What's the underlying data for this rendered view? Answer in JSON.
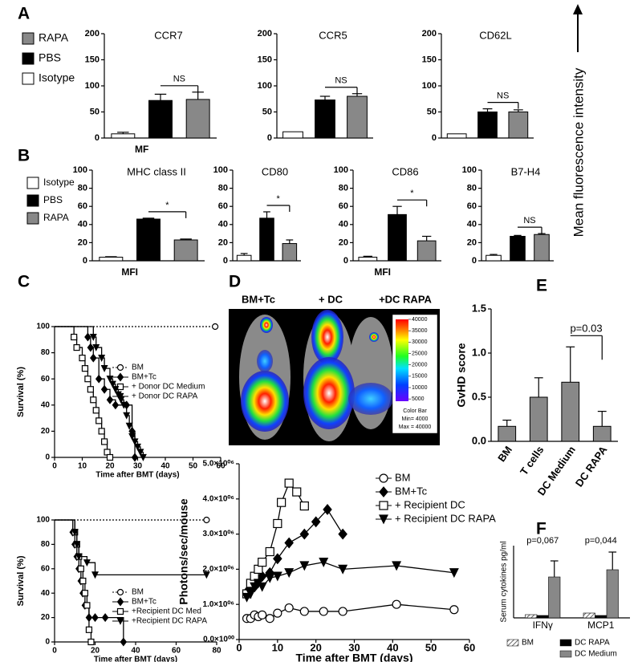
{
  "panel_labels": [
    "A",
    "B",
    "C",
    "D",
    "E",
    "F"
  ],
  "side_label": "Mean fluorescence intensity",
  "legends": [
    {
      "entries": [
        {
          "name": "RAPA",
          "color": "#888888"
        },
        {
          "name": "PBS",
          "color": "#000000"
        },
        {
          "name": "Isotype",
          "color": "#ffffff"
        }
      ]
    },
    {
      "entries": [
        {
          "name": "Isotype",
          "color": "#ffffff"
        },
        {
          "name": "PBS",
          "color": "#000000"
        },
        {
          "name": "RAPA",
          "color": "#888888"
        }
      ]
    }
  ],
  "chart_data": [
    {
      "type": "bar",
      "title": "CCR7",
      "xlabel": "MF",
      "values": [
        8,
        72,
        74
      ],
      "errors": [
        3,
        12,
        14
      ],
      "colors": [
        "#ffffff",
        "#000000",
        "#888888"
      ],
      "ylim": [
        0,
        200
      ],
      "yticks": [
        0,
        50,
        100,
        150,
        200
      ],
      "annotation": "NS"
    },
    {
      "type": "bar",
      "title": "CCR5",
      "values": [
        12,
        73,
        80
      ],
      "errors": [
        null,
        7,
        5
      ],
      "colors": [
        "#ffffff",
        "#000000",
        "#888888"
      ],
      "ylim": [
        0,
        200
      ],
      "yticks": [
        0,
        50,
        100,
        150,
        200
      ],
      "annotation": "NS"
    },
    {
      "type": "bar",
      "title": "CD62L",
      "values": [
        8,
        50,
        50
      ],
      "errors": [
        null,
        6,
        4
      ],
      "colors": [
        "#ffffff",
        "#000000",
        "#888888"
      ],
      "ylim": [
        0,
        200
      ],
      "yticks": [
        0,
        50,
        100,
        150,
        200
      ],
      "annotation": "NS"
    },
    {
      "type": "bar",
      "title": "MHC class II",
      "xlabel": "MFI",
      "values": [
        4,
        46,
        23
      ],
      "errors": [
        0.5,
        1,
        1
      ],
      "colors": [
        "#ffffff",
        "#000000",
        "#888888"
      ],
      "ylim": [
        0,
        100
      ],
      "yticks": [
        0,
        20,
        40,
        60,
        80,
        100
      ],
      "annotation": "*"
    },
    {
      "type": "bar",
      "title": "CD80",
      "values": [
        6,
        47,
        19
      ],
      "errors": [
        2,
        7,
        4
      ],
      "colors": [
        "#ffffff",
        "#000000",
        "#888888"
      ],
      "ylim": [
        0,
        100
      ],
      "yticks": [
        0,
        20,
        40,
        60,
        80,
        100
      ],
      "annotation": "*"
    },
    {
      "type": "bar",
      "title": "CD86",
      "xlabel": "MFI",
      "values": [
        4,
        51,
        22
      ],
      "errors": [
        1,
        9,
        5
      ],
      "colors": [
        "#ffffff",
        "#000000",
        "#888888"
      ],
      "ylim": [
        0,
        100
      ],
      "yticks": [
        0,
        20,
        40,
        60,
        80,
        100
      ],
      "annotation": "*"
    },
    {
      "type": "bar",
      "title": "B7-H4",
      "values": [
        6,
        27,
        29
      ],
      "errors": [
        1,
        1,
        1
      ],
      "colors": [
        "#ffffff",
        "#000000",
        "#888888"
      ],
      "ylim": [
        0,
        100
      ],
      "yticks": [
        0,
        20,
        40,
        60,
        80,
        100
      ],
      "annotation": "NS"
    },
    {
      "type": "survival",
      "ylabel": "Survival (%)",
      "xlabel": "Time after BMT (days)",
      "xlim": [
        0,
        60
      ],
      "xticks": [
        0,
        10,
        20,
        30,
        40,
        50,
        60
      ],
      "ylim": [
        0,
        100
      ],
      "yticks": [
        0,
        20,
        40,
        60,
        80,
        100
      ],
      "series": [
        {
          "name": "BM",
          "marker": "open-circle",
          "dash": true,
          "color": "#000000",
          "x": [
            0,
            58
          ],
          "values": [
            100,
            100
          ]
        },
        {
          "name": "BM+Tc",
          "marker": "filled-diamond",
          "color": "#000000",
          "x": [
            0,
            12,
            13,
            14,
            16,
            18,
            20,
            22,
            26,
            28,
            29
          ],
          "values": [
            100,
            92,
            84,
            76,
            60,
            52,
            44,
            40,
            40,
            20,
            0
          ]
        },
        {
          "name": "+ Donor DC Medium",
          "marker": "open-square",
          "color": "#000000",
          "x": [
            0,
            7,
            8,
            10,
            11,
            12,
            13,
            14,
            15,
            16,
            17,
            18,
            19,
            20
          ],
          "values": [
            100,
            92,
            84,
            76,
            68,
            60,
            52,
            44,
            36,
            28,
            20,
            12,
            4,
            0
          ]
        },
        {
          "name": "+ Donor DC RAPA",
          "marker": "filled-triangle-down",
          "color": "#000000",
          "x": [
            0,
            14,
            15,
            17,
            18,
            20,
            21,
            22,
            23,
            24,
            25,
            26,
            27,
            28,
            29,
            30,
            31,
            32
          ],
          "values": [
            100,
            92,
            84,
            76,
            68,
            60,
            56,
            52,
            48,
            44,
            40,
            32,
            24,
            16,
            12,
            8,
            4,
            0
          ]
        }
      ]
    },
    {
      "type": "survival",
      "ylabel": "Survival (%)",
      "xlabel": "Time after BMT (days)",
      "xlim": [
        0,
        80
      ],
      "xticks": [
        0,
        20,
        40,
        60,
        80
      ],
      "ylim": [
        0,
        100
      ],
      "yticks": [
        0,
        20,
        40,
        60,
        80,
        100
      ],
      "series": [
        {
          "name": "BM",
          "marker": "open-circle",
          "dash": true,
          "color": "#000000",
          "x": [
            0,
            75
          ],
          "values": [
            100,
            100
          ]
        },
        {
          "name": "BM+Tc",
          "marker": "filled-diamond",
          "color": "#000000",
          "x": [
            0,
            9,
            10,
            11,
            12,
            13,
            14,
            15,
            17,
            20,
            25,
            34
          ],
          "values": [
            100,
            90,
            80,
            70,
            60,
            50,
            40,
            30,
            20,
            20,
            20,
            0
          ]
        },
        {
          "name": "+Recipient DC Med",
          "marker": "open-square",
          "color": "#000000",
          "x": [
            0,
            10,
            11,
            12,
            13,
            14,
            15,
            16,
            17,
            18
          ],
          "values": [
            100,
            90,
            80,
            70,
            60,
            50,
            40,
            30,
            10,
            0
          ]
        },
        {
          "name": "+Recipient DC RAPA",
          "marker": "filled-triangle-down",
          "color": "#000000",
          "x": [
            0,
            10,
            11,
            12,
            16,
            20,
            75
          ],
          "values": [
            100,
            90,
            80,
            70,
            65,
            55,
            55
          ]
        }
      ]
    },
    {
      "type": "image",
      "labels": [
        "BM+Tc",
        "+ DC",
        "+DC RAPA"
      ],
      "colorbar": {
        "ticks": [
          40000,
          35000,
          30000,
          25000,
          20000,
          15000,
          10000,
          5000
        ],
        "lim": [
          4000,
          40000
        ],
        "title": "Color Bar",
        "min_label": "Min= 4000",
        "max_label": "Max = 40000"
      }
    },
    {
      "type": "line",
      "ylabel": "Photons/sec/mouse",
      "xlabel": "Time after BMT (days)",
      "xlim": [
        0,
        60
      ],
      "xticks": [
        0,
        10,
        20,
        30,
        40,
        50,
        60
      ],
      "ylim": [
        0,
        5000000
      ],
      "yticks": [
        {
          "value": 0,
          "label": "0.0×10⁰⁰"
        },
        {
          "value": 1000000,
          "label": "1.0×10⁰⁶"
        },
        {
          "value": 2000000,
          "label": "2.0×10⁰⁶"
        },
        {
          "value": 3000000,
          "label": "3.0×10⁰⁶"
        },
        {
          "value": 4000000,
          "label": "4.0×10⁰⁶"
        },
        {
          "value": 5000000,
          "label": "5.0×10⁰⁶"
        }
      ],
      "series": [
        {
          "name": "BM",
          "marker": "open-circle",
          "color": "#000000",
          "x": [
            2,
            3,
            4,
            5,
            6,
            8,
            10,
            13,
            17,
            22,
            27,
            41,
            56
          ],
          "values": [
            600000,
            600000,
            700000,
            650000,
            700000,
            600000,
            750000,
            900000,
            800000,
            800000,
            800000,
            1000000,
            850000
          ]
        },
        {
          "name": "BM+Tc",
          "marker": "filled-diamond",
          "color": "#000000",
          "x": [
            2,
            3,
            4,
            5,
            6,
            8,
            10,
            13,
            17,
            20,
            23,
            27
          ],
          "values": [
            1350000,
            1400000,
            1500000,
            1700000,
            1800000,
            1900000,
            2300000,
            2750000,
            3000000,
            3350000,
            3700000,
            3000000
          ]
        },
        {
          "name": "+ Recipient DC",
          "marker": "open-square",
          "color": "#000000",
          "x": [
            2,
            3,
            4,
            5,
            6,
            8,
            10,
            11,
            13,
            15,
            17
          ],
          "values": [
            1300000,
            1600000,
            1800000,
            2000000,
            2200000,
            2500000,
            3300000,
            3900000,
            4450000,
            4200000,
            3800000
          ]
        },
        {
          "name": "+ Recipient DC RAPA",
          "marker": "filled-triangle-down",
          "color": "#000000",
          "x": [
            2,
            3,
            4,
            5,
            6,
            8,
            10,
            13,
            17,
            22,
            27,
            41,
            56
          ],
          "values": [
            1200000,
            1300000,
            1500000,
            1600000,
            1500000,
            1750000,
            1800000,
            1900000,
            2100000,
            2200000,
            2000000,
            2100000,
            1900000
          ]
        }
      ]
    },
    {
      "type": "bar",
      "ylabel": "GvHD score",
      "categories": [
        "BM",
        "T cells",
        "DC Medium",
        "DC RAPA"
      ],
      "values": [
        0.17,
        0.5,
        0.67,
        0.17
      ],
      "errors": [
        0.07,
        0.22,
        0.4,
        0.17
      ],
      "color": "#888888",
      "ylim": [
        0,
        1.5
      ],
      "yticks": [
        {
          "value": 0,
          "label": "0.0"
        },
        {
          "value": 0.5,
          "label": "0.5"
        },
        {
          "value": 1,
          "label": "1.0"
        },
        {
          "value": 1.5,
          "label": "1.5"
        }
      ],
      "annotation": "p=0.03"
    },
    {
      "type": "grouped_bar",
      "ylabel": "Serum cytokines pg/ml",
      "categories": [
        "IFNγ",
        "MCP1"
      ],
      "ylim": [
        0,
        450
      ],
      "annotations": [
        "p=0,067",
        "p=0,044"
      ],
      "series": [
        {
          "name": "BM",
          "color": "#cccccc",
          "pattern": "hatch",
          "values": [
            20,
            30
          ]
        },
        {
          "name": "DC RAPA",
          "color": "#000000",
          "values": [
            15,
            15
          ]
        },
        {
          "name": "DC Medium",
          "color": "#888888",
          "values": [
            255,
            300
          ],
          "errors": [
            100,
            110
          ]
        }
      ]
    }
  ]
}
